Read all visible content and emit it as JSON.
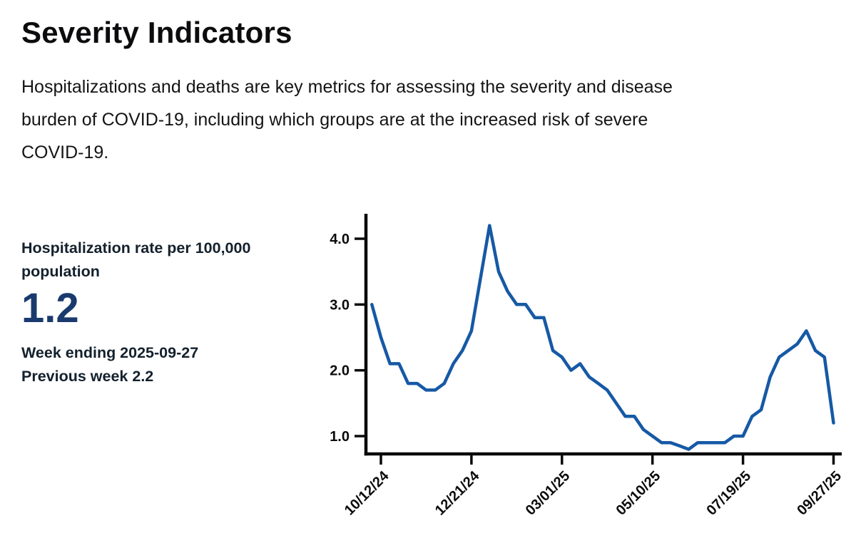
{
  "page": {
    "title": "Severity Indicators",
    "description_lines": [
      "Hospitalizations and deaths are key metrics for assessing the severity and disease",
      "burden of COVID-19, including which groups are at the increased risk of severe",
      "COVID-19."
    ]
  },
  "stat": {
    "label_lines": [
      "Hospitalization rate per 100,000",
      "population"
    ],
    "value": "1.2",
    "week_ending": "Week ending 2025-09-27",
    "previous_week": "Previous week 2.2"
  },
  "colors": {
    "trend_line": "#1659a5",
    "stat_value": "#1a3a6e",
    "stat_text": "#14212d",
    "axis": "#0a0a0a",
    "tick_label": "#0b0b0b"
  },
  "chart_data": {
    "type": "line",
    "title": "",
    "xlabel": "",
    "ylabel": "",
    "grid": false,
    "legend": "none",
    "x_unit": "week ending date",
    "x": [
      "2024-10-05",
      "2024-10-12",
      "2024-10-19",
      "2024-10-26",
      "2024-11-02",
      "2024-11-09",
      "2024-11-16",
      "2024-11-23",
      "2024-11-30",
      "2024-12-07",
      "2024-12-14",
      "2024-12-21",
      "2024-12-28",
      "2025-01-04",
      "2025-01-11",
      "2025-01-18",
      "2025-01-25",
      "2025-02-01",
      "2025-02-08",
      "2025-02-15",
      "2025-02-22",
      "2025-03-01",
      "2025-03-08",
      "2025-03-15",
      "2025-03-22",
      "2025-03-29",
      "2025-04-05",
      "2025-04-12",
      "2025-04-19",
      "2025-04-26",
      "2025-05-03",
      "2025-05-10",
      "2025-05-17",
      "2025-05-24",
      "2025-05-31",
      "2025-06-07",
      "2025-06-14",
      "2025-06-21",
      "2025-06-28",
      "2025-07-05",
      "2025-07-12",
      "2025-07-19",
      "2025-07-26",
      "2025-08-02",
      "2025-08-09",
      "2025-08-16",
      "2025-08-23",
      "2025-08-30",
      "2025-09-06",
      "2025-09-13",
      "2025-09-20",
      "2025-09-27"
    ],
    "values": [
      3.0,
      2.5,
      2.1,
      2.1,
      1.8,
      1.8,
      1.7,
      1.7,
      1.8,
      2.1,
      2.3,
      2.6,
      3.4,
      4.2,
      3.5,
      3.2,
      3.0,
      3.0,
      2.8,
      2.8,
      2.3,
      2.2,
      2.0,
      2.1,
      1.9,
      1.8,
      1.7,
      1.5,
      1.3,
      1.3,
      1.1,
      1.0,
      0.9,
      0.9,
      0.85,
      0.8,
      0.9,
      0.9,
      0.9,
      0.9,
      1.0,
      1.0,
      1.3,
      1.4,
      1.9,
      2.2,
      2.3,
      2.4,
      2.6,
      2.3,
      2.2,
      1.2
    ],
    "x_tick_indices": [
      1,
      11,
      21,
      31,
      41,
      51
    ],
    "x_tick_labels": [
      "10/12/24",
      "12/21/24",
      "03/01/25",
      "05/10/25",
      "07/19/25",
      "09/27/25"
    ],
    "x_tick_rotation_deg": 45,
    "y_ticks": [
      1.0,
      2.0,
      3.0,
      4.0
    ],
    "ylim": [
      0.73,
      4.4
    ]
  }
}
